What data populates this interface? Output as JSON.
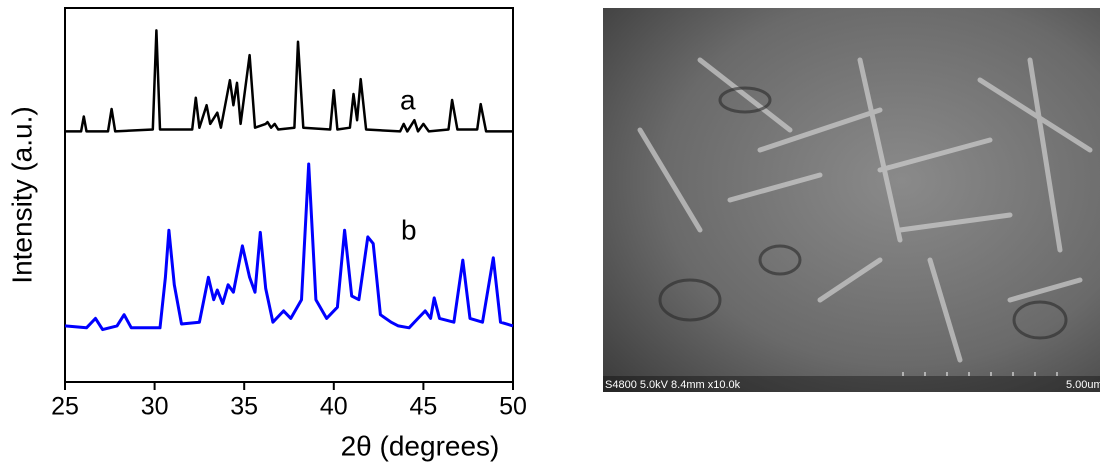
{
  "chart_data": {
    "type": "line",
    "xlabel": "2θ (degrees)",
    "ylabel": "Intensity (a.u.)",
    "xlim": [
      25,
      50
    ],
    "xticks": [
      25,
      30,
      35,
      40,
      45,
      50
    ],
    "ylim": [
      0,
      100
    ],
    "series": [
      {
        "name": "a",
        "color": "#000000",
        "x": [
          25,
          25.9,
          26.05,
          26.2,
          27.4,
          27.6,
          27.8,
          29.9,
          30.1,
          30.3,
          32.1,
          32.3,
          32.5,
          32.9,
          33.1,
          33.5,
          33.7,
          34.2,
          34.4,
          34.6,
          34.8,
          35.3,
          35.6,
          36.2,
          36.3,
          36.5,
          36.7,
          36.9,
          37.8,
          38.0,
          38.3,
          39.8,
          40.0,
          40.2,
          40.9,
          41.1,
          41.3,
          41.5,
          41.8,
          43.7,
          43.9,
          44.1,
          44.5,
          44.7,
          45.0,
          45.3,
          46.4,
          46.6,
          46.9,
          48.0,
          48.2,
          48.5,
          50
        ],
        "values": [
          67,
          67,
          71,
          67,
          67,
          73,
          67,
          67.5,
          94,
          67.5,
          67.5,
          76,
          68,
          74,
          69,
          72,
          68,
          80.7,
          74,
          80,
          69,
          87.4,
          68,
          69,
          69.5,
          68,
          69,
          67.5,
          68,
          91,
          68,
          67.5,
          78,
          67.5,
          68,
          77,
          70,
          81,
          67.5,
          67,
          69,
          67,
          70,
          67,
          69,
          67,
          67.5,
          75.4,
          67.5,
          67.5,
          74.3,
          67,
          67
        ]
      },
      {
        "name": "b",
        "color": "#0000ff",
        "x": [
          25,
          26.2,
          26.7,
          27.1,
          27.9,
          28.3,
          28.7,
          30.3,
          30.6,
          30.8,
          31.1,
          31.5,
          32.5,
          33,
          33.3,
          33.5,
          33.8,
          34.1,
          34.4,
          34.9,
          35.3,
          35.6,
          35.9,
          36.2,
          36.6,
          37.2,
          37.6,
          38.2,
          38.6,
          39,
          39.6,
          40.2,
          40.6,
          41,
          41.4,
          41.9,
          42.2,
          42.6,
          43.2,
          43.6,
          44.2,
          44.7,
          45.1,
          45.4,
          45.6,
          45.9,
          46.7,
          47.2,
          47.6,
          48.3,
          48.9,
          49.3,
          50
        ],
        "values": [
          15,
          14.5,
          17,
          14,
          15,
          18,
          14.5,
          14.5,
          28,
          40.6,
          26,
          15.5,
          16,
          28,
          22,
          24.6,
          21,
          26,
          24,
          36.4,
          28,
          24,
          40,
          25,
          16,
          19,
          17,
          22,
          58.3,
          22,
          17,
          20,
          40.6,
          23,
          22,
          38.8,
          37,
          18,
          16,
          15,
          14.5,
          17,
          19,
          17,
          22.5,
          17,
          16,
          32.6,
          17,
          16,
          33.2,
          16,
          15
        ]
      }
    ]
  },
  "image": {
    "info": "S4800 5.0kV 8.4mm x10.0k",
    "scale": "5.00um"
  }
}
